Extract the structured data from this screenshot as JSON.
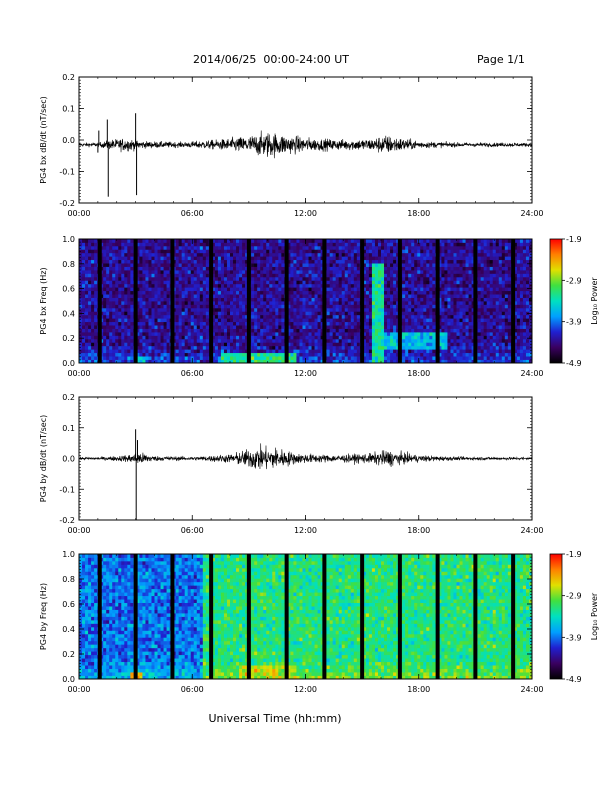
{
  "header": {
    "title": "2014/06/25  00:00-24:00 UT",
    "page": "Page 1/1"
  },
  "x_axis": {
    "label": "Universal Time (hh:mm)",
    "range": [
      0,
      24
    ],
    "tick_labels": [
      "00:00",
      "06:00",
      "12:00",
      "18:00",
      "24:00"
    ],
    "tick_values": [
      0,
      6,
      12,
      18,
      24
    ]
  },
  "colorbar": {
    "label": "Log₁₀ Power",
    "range": [
      -4.9,
      -1.9
    ],
    "tick_labels": [
      "-1.9",
      "-2.9",
      "-3.9",
      "-4.9"
    ],
    "tick_values": [
      -1.9,
      -2.9,
      -3.9,
      -4.9
    ],
    "colormap": [
      "#000000",
      "#3a0060",
      "#2020d0",
      "#00a0ff",
      "#00e0c0",
      "#40e040",
      "#e0e000",
      "#ff8000",
      "#ff0000"
    ]
  },
  "chart_data": [
    {
      "type": "line",
      "id": "bx-dbdt",
      "ylabel": "PG4 bx dB/dt (nT/sec)",
      "ylim": [
        -0.2,
        0.2
      ],
      "y_tick_labels": [
        "0.2",
        "0.1",
        "0.0",
        "-0.1",
        "-0.2"
      ],
      "y_tick_values": [
        0.2,
        0.1,
        0.0,
        -0.1,
        -0.2
      ],
      "baseline": -0.015,
      "activity": [
        {
          "t": 0.0,
          "amp": 0.004
        },
        {
          "t": 1.0,
          "amp": 0.005
        },
        {
          "t": 1.8,
          "amp": 0.012
        },
        {
          "t": 2.5,
          "amp": 0.015
        },
        {
          "t": 3.5,
          "amp": 0.008
        },
        {
          "t": 5.5,
          "amp": 0.006
        },
        {
          "t": 7.5,
          "amp": 0.012
        },
        {
          "t": 9.0,
          "amp": 0.02
        },
        {
          "t": 10.0,
          "amp": 0.03
        },
        {
          "t": 11.0,
          "amp": 0.022
        },
        {
          "t": 12.5,
          "amp": 0.014
        },
        {
          "t": 14.0,
          "amp": 0.012
        },
        {
          "t": 15.5,
          "amp": 0.014
        },
        {
          "t": 16.2,
          "amp": 0.022
        },
        {
          "t": 17.0,
          "amp": 0.016
        },
        {
          "t": 18.0,
          "amp": 0.008
        },
        {
          "t": 20.0,
          "amp": 0.005
        },
        {
          "t": 24.0,
          "amp": 0.004
        }
      ],
      "spikes": [
        {
          "t": 1.0,
          "y": -0.04
        },
        {
          "t": 1.05,
          "y": 0.03
        },
        {
          "t": 1.5,
          "y": 0.065
        },
        {
          "t": 1.55,
          "y": -0.18
        },
        {
          "t": 3.0,
          "y": 0.085
        },
        {
          "t": 3.05,
          "y": -0.175
        }
      ]
    },
    {
      "type": "heatmap",
      "id": "bx-spectrogram",
      "ylabel": "PG4 bx Freq (Hz)",
      "ylim": [
        0,
        1.0
      ],
      "y_tick_labels": [
        "1.0",
        "0.8",
        "0.6",
        "0.4",
        "0.2",
        "0.0"
      ],
      "y_tick_values": [
        1.0,
        0.8,
        0.6,
        0.4,
        0.2,
        0.0
      ],
      "background_level": -4.35,
      "gap_times": [
        1.1,
        3.0,
        4.95,
        7.0,
        9.0,
        11.0,
        13.0,
        15.0,
        17.0,
        19.0,
        21.0,
        23.0
      ],
      "enhancements": [
        {
          "t0": 7.5,
          "t1": 11.5,
          "f0": 0.0,
          "f1": 0.08,
          "level": -3.2
        },
        {
          "t0": 3.0,
          "t1": 3.5,
          "f0": 0.0,
          "f1": 0.06,
          "level": -3.4
        },
        {
          "t0": 15.6,
          "t1": 16.2,
          "f0": 0.0,
          "f1": 0.8,
          "level": -3.3
        },
        {
          "t0": 16.2,
          "t1": 19.5,
          "f0": 0.1,
          "f1": 0.25,
          "level": -3.6
        }
      ]
    },
    {
      "type": "line",
      "id": "by-dbdt",
      "ylabel": "PG4 by dB/dt (nT/sec)",
      "ylim": [
        -0.2,
        0.2
      ],
      "y_tick_labels": [
        "0.2",
        "0.1",
        "0.0",
        "-0.1",
        "-0.2"
      ],
      "y_tick_values": [
        0.2,
        0.1,
        0.0,
        -0.1,
        -0.2
      ],
      "baseline": 0.0,
      "activity": [
        {
          "t": 0.0,
          "amp": 0.003
        },
        {
          "t": 1.5,
          "amp": 0.004
        },
        {
          "t": 2.5,
          "amp": 0.008
        },
        {
          "t": 3.2,
          "amp": 0.015
        },
        {
          "t": 4.0,
          "amp": 0.006
        },
        {
          "t": 6.0,
          "amp": 0.004
        },
        {
          "t": 8.0,
          "amp": 0.01
        },
        {
          "t": 9.5,
          "amp": 0.028
        },
        {
          "t": 10.5,
          "amp": 0.025
        },
        {
          "t": 11.5,
          "amp": 0.012
        },
        {
          "t": 13.5,
          "amp": 0.008
        },
        {
          "t": 15.5,
          "amp": 0.012
        },
        {
          "t": 16.3,
          "amp": 0.02
        },
        {
          "t": 17.0,
          "amp": 0.014
        },
        {
          "t": 18.0,
          "amp": 0.008
        },
        {
          "t": 20.0,
          "amp": 0.004
        },
        {
          "t": 24.0,
          "amp": 0.003
        }
      ],
      "spikes": [
        {
          "t": 3.0,
          "y": 0.095
        },
        {
          "t": 3.03,
          "y": -0.2
        },
        {
          "t": 3.1,
          "y": 0.06
        }
      ]
    },
    {
      "type": "heatmap",
      "id": "by-spectrogram",
      "ylabel": "PG4 by Freq (Hz)",
      "ylim": [
        0,
        1.0
      ],
      "y_tick_labels": [
        "1.0",
        "0.8",
        "0.6",
        "0.4",
        "0.2",
        "0.0"
      ],
      "y_tick_values": [
        1.0,
        0.8,
        0.6,
        0.4,
        0.2,
        0.0
      ],
      "background_level": -3.2,
      "gap_times": [
        1.1,
        3.0,
        4.95,
        7.0,
        9.0,
        11.0,
        13.0,
        15.0,
        17.0,
        19.0,
        21.0,
        23.0
      ],
      "quiet_region": {
        "t0": 0.0,
        "t1": 6.5,
        "level": -3.9
      },
      "enhancements": [
        {
          "t0": 8.5,
          "t1": 11.5,
          "f0": 0.0,
          "f1": 0.12,
          "level": -2.7
        },
        {
          "t0": 2.8,
          "t1": 3.4,
          "f0": 0.0,
          "f1": 0.06,
          "level": -2.4
        }
      ]
    }
  ]
}
